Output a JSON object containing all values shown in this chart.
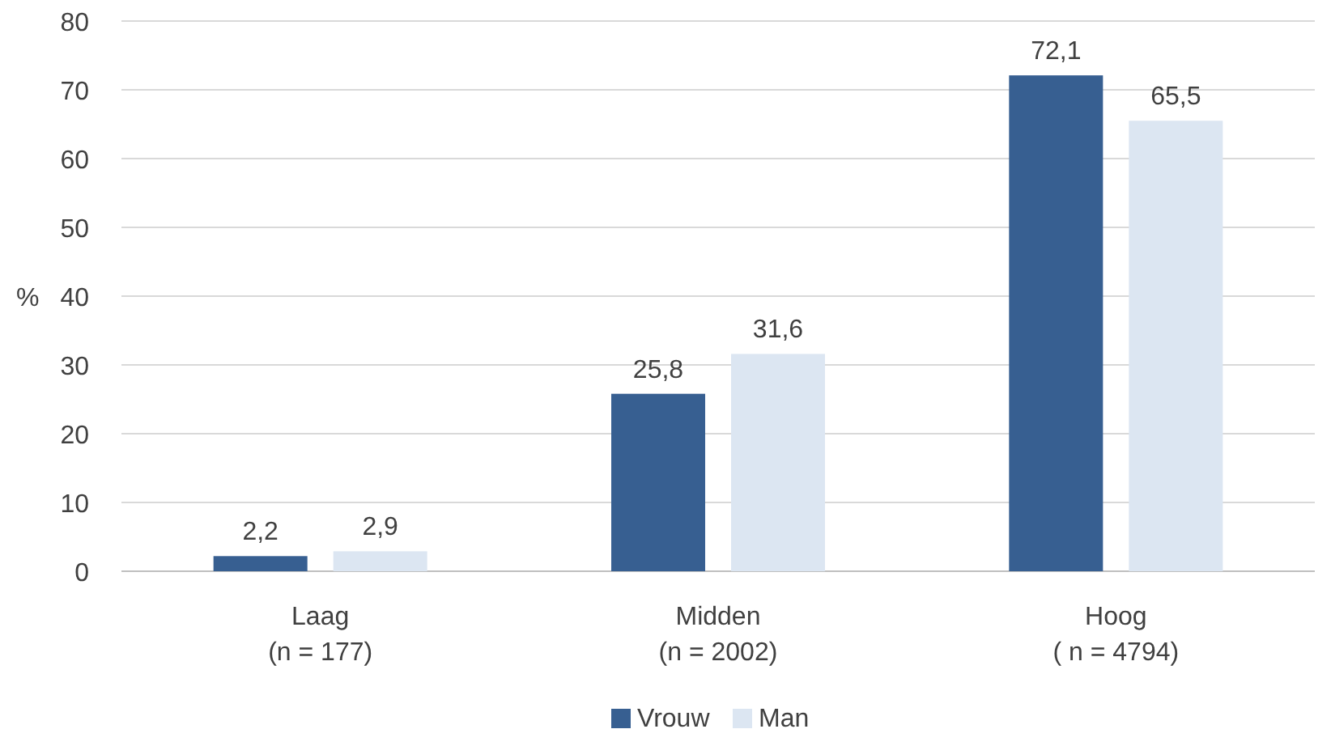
{
  "chart_data": {
    "type": "bar",
    "ylabel": "%",
    "categories": [
      "Laag\n(n = 177)",
      "Midden\n(n = 2002)",
      "Hoog\n( n = 4794)"
    ],
    "series": [
      {
        "name": "Vrouw",
        "color": "#375f91",
        "values": [
          2.2,
          25.8,
          72.1
        ],
        "value_labels": [
          "2,2",
          "25,8",
          "72,1"
        ]
      },
      {
        "name": "Man",
        "color": "#dce6f2",
        "values": [
          2.9,
          31.6,
          65.5
        ],
        "value_labels": [
          "2,9",
          "31,6",
          "65,5"
        ]
      }
    ],
    "ylim": [
      0,
      80
    ],
    "yticks": [
      0,
      10,
      20,
      30,
      40,
      50,
      60,
      70,
      80
    ],
    "grid": "y",
    "legend": "bottom"
  }
}
